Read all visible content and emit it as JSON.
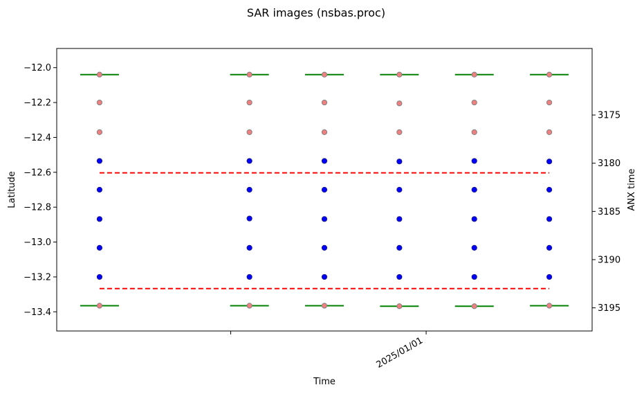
{
  "chart_data": {
    "type": "scatter",
    "title": "SAR images (nsbas.proc)",
    "xlabel": "Time",
    "ylabel": "Latitude",
    "y2label": "ANX time",
    "x_tick_labels": [
      "",
      "2025/01/01"
    ],
    "y_ticks": [
      -12.0,
      -12.2,
      -12.4,
      -12.6,
      -12.8,
      -13.0,
      -13.2,
      -13.4
    ],
    "y_tick_labels": [
      "−12.0",
      "−12.2",
      "−12.4",
      "−12.6",
      "−12.8",
      "−13.0",
      "−13.2",
      "−13.4"
    ],
    "y2_ticks": [
      3175,
      3180,
      3185,
      3190,
      3195
    ],
    "y2_tick_labels": [
      "3175",
      "3180",
      "3185",
      "3190",
      "3195"
    ],
    "ylim": [
      -13.51,
      -11.89
    ],
    "y2lim": [
      3168.1,
      3197.4
    ],
    "x_positions": [
      0.08,
      0.36,
      0.5,
      0.64,
      0.78,
      0.92
    ],
    "x_tick_positions": [
      0.325,
      0.69
    ],
    "grid": false,
    "colors": {
      "blue": "#0000ff",
      "blue_edge": "#1a1a8c",
      "salmon": "#f08080",
      "salmon_edge": "#808080",
      "green": "#008000",
      "red_dashed": "#ff0000"
    },
    "series": [
      {
        "kind": "dots-salmon",
        "points": [
          [
            -12.04,
            -12.2,
            -12.37,
            -13.365
          ],
          [
            -12.04,
            -12.2,
            -12.37,
            -13.365
          ],
          [
            -12.04,
            -12.2,
            -12.37,
            -13.365
          ],
          [
            -12.04,
            -12.205,
            -12.37,
            -13.368
          ],
          [
            -12.04,
            -12.2,
            -12.37,
            -13.368
          ],
          [
            -12.04,
            -12.2,
            -12.37,
            -13.365
          ]
        ]
      },
      {
        "kind": "dots-blue",
        "points": [
          [
            -12.535,
            -12.7,
            -12.868,
            -13.033,
            -13.2
          ],
          [
            -12.535,
            -12.7,
            -12.865,
            -13.033,
            -13.2
          ],
          [
            -12.535,
            -12.7,
            -12.868,
            -13.033,
            -13.2
          ],
          [
            -12.538,
            -12.7,
            -12.868,
            -13.033,
            -13.2
          ],
          [
            -12.535,
            -12.7,
            -12.868,
            -13.033,
            -13.2
          ],
          [
            -12.538,
            -12.7,
            -12.868,
            -13.033,
            -13.2
          ]
        ]
      },
      {
        "kind": "green-segments",
        "top": [
          -12.04,
          -12.04,
          -12.04,
          -12.04,
          -12.04,
          -12.04
        ],
        "bottom": [
          -13.365,
          -13.365,
          -13.365,
          -13.368,
          -13.368,
          -13.365
        ]
      },
      {
        "kind": "red-dashed",
        "y2_values": [
          3181.0,
          3193.0
        ]
      }
    ]
  }
}
